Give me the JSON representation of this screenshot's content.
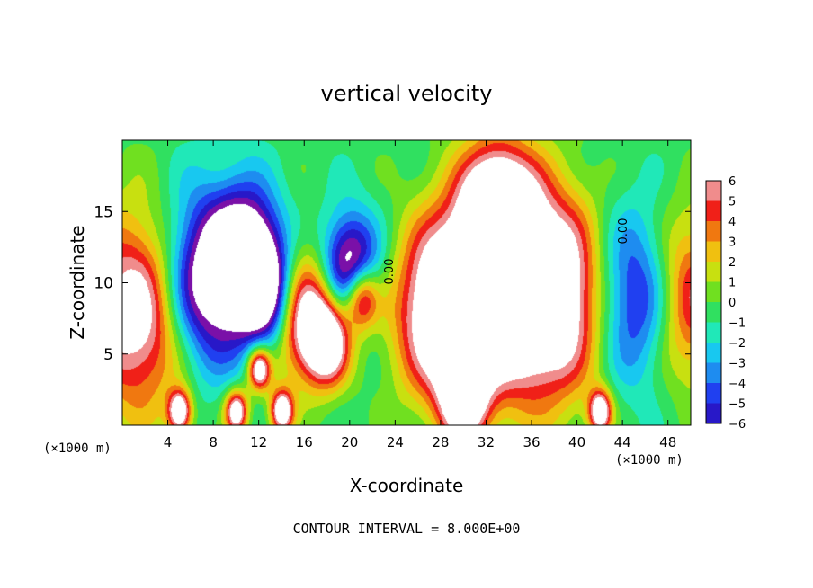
{
  "chart_data": {
    "type": "heatmap",
    "title": "vertical velocity",
    "xlabel": "X-coordinate",
    "ylabel": "Z-coordinate",
    "x_unit_left": "(×1000 m)",
    "x_unit_right": "(×1000 m)",
    "xlim": [
      0,
      50
    ],
    "ylim": [
      0,
      20
    ],
    "x_ticks": [
      4,
      8,
      12,
      16,
      20,
      24,
      28,
      32,
      36,
      40,
      44,
      48
    ],
    "x_tick_labels": [
      "4",
      "8",
      "12",
      "16",
      "20",
      "24",
      "28",
      "32",
      "36",
      "40",
      "44",
      "48"
    ],
    "y_ticks": [
      5,
      10,
      15
    ],
    "y_tick_labels": [
      "5",
      "10",
      "15"
    ],
    "colorbar": {
      "levels": [
        6,
        5,
        4,
        3,
        2,
        1,
        0,
        -1,
        -2,
        -3,
        -4,
        -5,
        -6
      ],
      "labels": [
        "6",
        "5",
        "4",
        "3",
        "2",
        "1",
        "0",
        "−1",
        "−2",
        "−3",
        "−4",
        "−5",
        "−6"
      ]
    },
    "zero_contour_labels": [
      "0.00",
      "0.00"
    ],
    "footer": "CONTOUR INTERVAL = 8.000E+00",
    "features": [
      {
        "x": 28,
        "z": 8,
        "w": 8,
        "sign": 1
      },
      {
        "x": 33,
        "z": 10,
        "w": 10,
        "sign": 1
      },
      {
        "x": 38,
        "z": 9,
        "w": 9,
        "sign": 1
      },
      {
        "x": 33,
        "z": 15,
        "w": 6,
        "sign": 1
      },
      {
        "x": 30,
        "z": 2,
        "w": 4,
        "sign": 1
      },
      {
        "x": 15.5,
        "z": 8,
        "w": 6,
        "sign": 1
      },
      {
        "x": 18,
        "z": 6,
        "w": 4,
        "sign": 1
      },
      {
        "x": 21,
        "z": 9,
        "w": 3,
        "sign": 1
      },
      {
        "x": 1.5,
        "z": 8,
        "w": 9,
        "sign": 1
      },
      {
        "x": 49,
        "z": 9,
        "w": 8,
        "sign": 1
      },
      {
        "x": 5,
        "z": 1,
        "w": 2,
        "sign": 1
      },
      {
        "x": 10,
        "z": 1,
        "w": 2,
        "sign": 1
      },
      {
        "x": 12,
        "z": 4,
        "w": 2,
        "sign": 1
      },
      {
        "x": 14,
        "z": 1,
        "w": 2,
        "sign": 1
      },
      {
        "x": 42,
        "z": 1,
        "w": 2,
        "sign": 1
      },
      {
        "x": 7,
        "z": 10,
        "w": 8,
        "sign": -1
      },
      {
        "x": 11,
        "z": 12,
        "w": 6,
        "sign": -1
      },
      {
        "x": 13,
        "z": 9,
        "w": 5,
        "sign": -1
      },
      {
        "x": 46,
        "z": 9,
        "w": 8,
        "sign": -1
      },
      {
        "x": 20,
        "z": 11,
        "w": 5,
        "sign": -1
      }
    ]
  }
}
